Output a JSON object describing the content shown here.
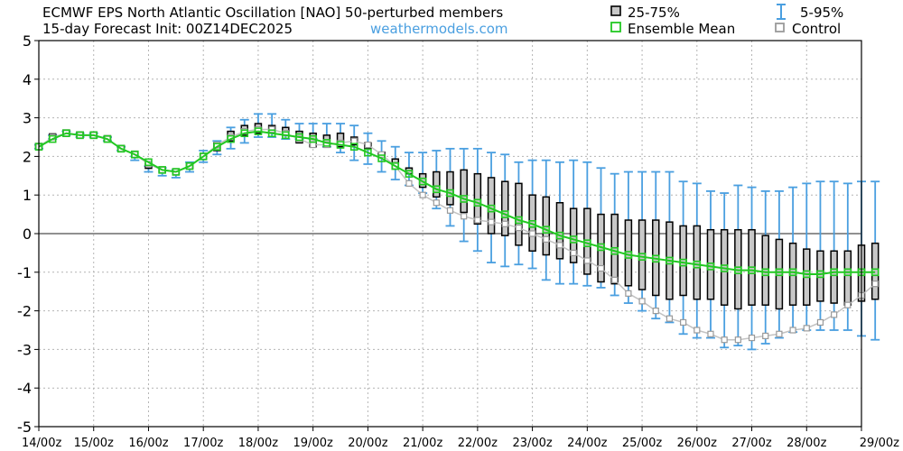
{
  "chart_data": {
    "type": "box",
    "title_line1": "ECMWF EPS North Atlantic Oscillation [NAO]  50-perturbed members",
    "title_line2": "15-day Forecast Init: 00Z14DEC2025",
    "source": "weathermodels.com",
    "legend": {
      "iqr": "25-75%",
      "mean": "Ensemble Mean",
      "range": "5-95%",
      "control": "Control"
    },
    "ylim": [
      -5,
      5
    ],
    "yticks": [
      "5",
      "4",
      "3",
      "2",
      "1",
      "0",
      "-1",
      "-2",
      "-3",
      "-4",
      "-5"
    ],
    "x_range_days": [
      0,
      15
    ],
    "xticks": [
      "14/00z",
      "15/00z",
      "16/00z",
      "17/00z",
      "18/00z",
      "19/00z",
      "20/00z",
      "21/00z",
      "22/00z",
      "23/00z",
      "24/00z",
      "25/00z",
      "26/00z",
      "27/00z",
      "28/00z",
      "29/00z"
    ],
    "step_hours": 6,
    "p5": [
      2.2,
      2.45,
      2.55,
      2.5,
      2.5,
      2.4,
      2.15,
      1.9,
      1.6,
      1.5,
      1.45,
      1.6,
      1.85,
      2.05,
      2.2,
      2.35,
      2.5,
      2.5,
      2.45,
      2.45,
      2.45,
      2.25,
      2.1,
      1.9,
      1.8,
      1.6,
      1.4,
      1.25,
      1.05,
      0.65,
      0.2,
      -0.2,
      -0.45,
      -0.75,
      -0.85,
      -0.8,
      -0.9,
      -1.2,
      -1.3,
      -1.3,
      -1.35,
      -1.4,
      -1.6,
      -1.8,
      -2.0,
      -2.2,
      -2.3,
      -2.6,
      -2.7,
      -2.7,
      -2.95,
      -2.9,
      -3.0,
      -2.85,
      -2.7,
      -2.55,
      -2.5,
      -2.5,
      -2.5,
      -2.5,
      -2.65,
      -2.75
    ],
    "p95": [
      2.3,
      2.55,
      2.65,
      2.6,
      2.6,
      2.5,
      2.25,
      2.0,
      1.75,
      1.7,
      1.65,
      1.85,
      2.15,
      2.4,
      2.75,
      2.95,
      3.1,
      3.1,
      2.95,
      2.85,
      2.85,
      2.85,
      2.85,
      2.8,
      2.6,
      2.4,
      2.25,
      2.1,
      2.1,
      2.15,
      2.2,
      2.2,
      2.2,
      2.1,
      2.05,
      1.85,
      1.9,
      1.9,
      1.85,
      1.9,
      1.85,
      1.7,
      1.55,
      1.6,
      1.6,
      1.6,
      1.6,
      1.35,
      1.3,
      1.1,
      1.05,
      1.25,
      1.2,
      1.1,
      1.1,
      1.2,
      1.3,
      1.35,
      1.35,
      1.3,
      1.35,
      1.35
    ],
    "q25": [
      2.25,
      2.5,
      2.6,
      2.55,
      2.55,
      2.45,
      2.2,
      2.05,
      1.7,
      1.6,
      1.55,
      1.7,
      1.95,
      2.15,
      2.4,
      2.55,
      2.6,
      2.6,
      2.55,
      2.35,
      2.25,
      2.25,
      2.25,
      2.3,
      2.2,
      2.0,
      1.85,
      1.55,
      1.2,
      0.95,
      0.75,
      0.55,
      0.25,
      0.0,
      -0.05,
      -0.3,
      -0.45,
      -0.55,
      -0.65,
      -0.75,
      -1.05,
      -1.25,
      -1.3,
      -1.35,
      -1.45,
      -1.6,
      -1.7,
      -1.6,
      -1.7,
      -1.7,
      -1.85,
      -1.95,
      -1.85,
      -1.85,
      -1.95,
      -1.85,
      -1.85,
      -1.75,
      -1.8,
      -1.85,
      -1.75,
      -1.7
    ],
    "q75": [
      2.3,
      2.55,
      2.65,
      2.6,
      2.6,
      2.5,
      2.25,
      2.1,
      1.8,
      1.7,
      1.65,
      1.8,
      2.05,
      2.35,
      2.65,
      2.8,
      2.85,
      2.8,
      2.75,
      2.65,
      2.6,
      2.55,
      2.6,
      2.5,
      2.35,
      2.1,
      1.9,
      1.7,
      1.55,
      1.6,
      1.6,
      1.65,
      1.55,
      1.45,
      1.35,
      1.3,
      1.0,
      0.95,
      0.8,
      0.65,
      0.65,
      0.5,
      0.5,
      0.35,
      0.35,
      0.35,
      0.3,
      0.2,
      0.2,
      0.1,
      0.1,
      0.1,
      0.1,
      -0.05,
      -0.15,
      -0.25,
      -0.4,
      -0.45,
      -0.45,
      -0.45,
      -0.3,
      -0.25
    ],
    "mean": [
      2.25,
      2.45,
      2.6,
      2.55,
      2.55,
      2.45,
      2.2,
      2.05,
      1.85,
      1.65,
      1.6,
      1.75,
      2.0,
      2.25,
      2.45,
      2.6,
      2.65,
      2.6,
      2.55,
      2.5,
      2.45,
      2.35,
      2.3,
      2.25,
      2.1,
      1.95,
      1.75,
      1.55,
      1.35,
      1.15,
      1.05,
      0.9,
      0.8,
      0.65,
      0.5,
      0.35,
      0.25,
      0.1,
      -0.05,
      -0.15,
      -0.25,
      -0.35,
      -0.45,
      -0.55,
      -0.6,
      -0.65,
      -0.7,
      -0.75,
      -0.8,
      -0.85,
      -0.9,
      -0.95,
      -0.95,
      -1.0,
      -1.0,
      -1.0,
      -1.05,
      -1.05,
      -1.0,
      -1.0,
      -1.0,
      -1.0
    ],
    "control": [
      2.25,
      2.5,
      2.6,
      2.55,
      2.55,
      2.45,
      2.2,
      2.05,
      1.8,
      1.65,
      1.6,
      1.75,
      2.0,
      2.3,
      2.5,
      2.65,
      2.7,
      2.7,
      2.6,
      2.45,
      2.3,
      2.3,
      2.35,
      2.4,
      2.3,
      2.05,
      1.75,
      1.3,
      1.0,
      0.8,
      0.6,
      0.45,
      0.35,
      0.3,
      0.25,
      0.15,
      0.0,
      -0.15,
      -0.3,
      -0.5,
      -0.7,
      -0.9,
      -1.2,
      -1.55,
      -1.75,
      -2.0,
      -2.2,
      -2.3,
      -2.5,
      -2.6,
      -2.75,
      -2.75,
      -2.7,
      -2.65,
      -2.6,
      -2.5,
      -2.45,
      -2.3,
      -2.1,
      -1.85,
      -1.6,
      -1.3
    ],
    "colors": {
      "whisker": "#4a9fe0",
      "mean": "#22c822",
      "box_fill": "#c8c8c8",
      "box_edge": "#000000",
      "control": "#9a9a9a",
      "grid": "#b4b4b4",
      "zero": "#222222",
      "source": "#4a9fe0"
    }
  }
}
